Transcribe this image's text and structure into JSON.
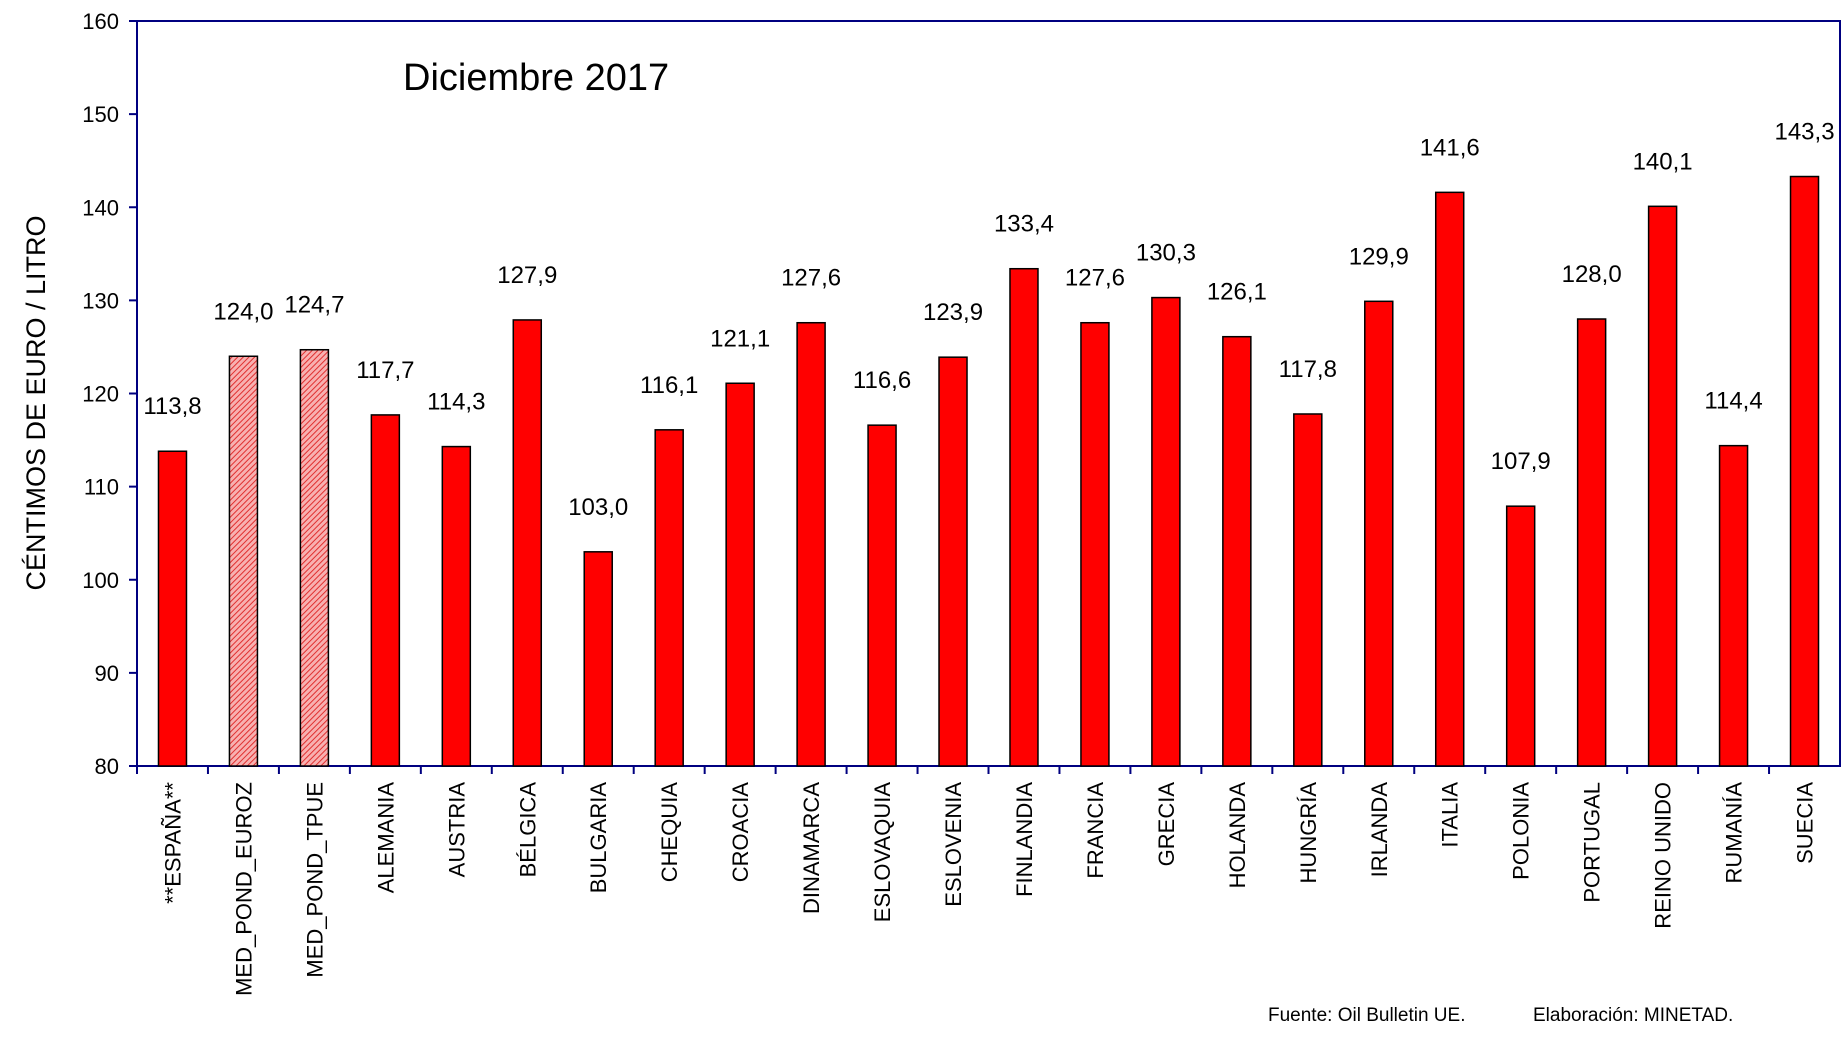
{
  "chart_data": {
    "type": "bar",
    "title": "Diciembre 2017",
    "ylabel": "CÉNTIMOS DE EURO / LITRO",
    "xlabel": "",
    "ylim": [
      80,
      160
    ],
    "yticks": [
      80,
      90,
      100,
      110,
      120,
      130,
      140,
      150,
      160
    ],
    "grid": false,
    "legend": "none",
    "categories": [
      "**ESPAÑA**",
      "MED_POND_EUROZ",
      "MED_POND_TPUE",
      "ALEMANIA",
      "AUSTRIA",
      "BÉLGICA",
      "BULGARIA",
      "CHEQUIA",
      "CROACIA",
      "DINAMARCA",
      "ESLOVAQUIA",
      "ESLOVENIA",
      "FINLANDIA",
      "FRANCIA",
      "GRECIA",
      "HOLANDA",
      "HUNGRÍA",
      "IRLANDA",
      "ITALIA",
      "POLONIA",
      "PORTUGAL",
      "REINO UNIDO",
      "RUMANÍA",
      "SUECIA"
    ],
    "values": [
      113.8,
      124.0,
      124.7,
      117.7,
      114.3,
      127.9,
      103.0,
      116.1,
      121.1,
      127.6,
      116.6,
      123.9,
      133.4,
      127.6,
      130.3,
      126.1,
      117.8,
      129.9,
      141.6,
      107.9,
      128.0,
      140.1,
      114.4,
      143.3
    ],
    "value_labels": [
      "113,8",
      "124,0",
      "124,7",
      "117,7",
      "114,3",
      "127,9",
      "103,0",
      "116,1",
      "121,1",
      "127,6",
      "116,6",
      "123,9",
      "133,4",
      "127,6",
      "130,3",
      "126,1",
      "117,8",
      "129,9",
      "141,6",
      "107,9",
      "128,0",
      "140,1",
      "114,4",
      "143,3"
    ],
    "hatched_categories": [
      "MED_POND_EUROZ",
      "MED_POND_TPUE"
    ],
    "colors": {
      "bar": "#ff0000",
      "hatched_bar": "#f08080",
      "axis": "#000080",
      "bar_edge": "#000000"
    }
  },
  "footer": {
    "source": "Fuente: Oil Bulletin UE.",
    "credit": "Elaboración: MINETAD."
  }
}
